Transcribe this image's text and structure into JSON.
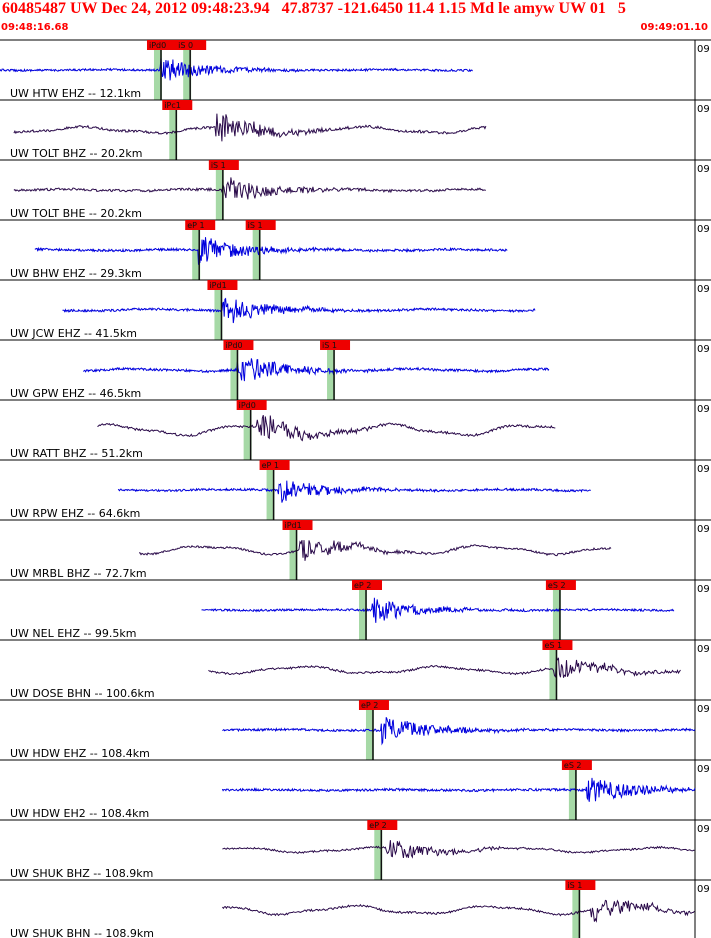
{
  "header": {
    "title": "60485487 UW Dec 24, 2012 09:48:23.94   47.8737 -121.6450 11.4 1.15 Md le amyw UW 01   5",
    "time_start": "09:48:16.68",
    "time_end": "09:49:01.10"
  },
  "colors": {
    "header_red": "#ff0000",
    "trace_blue": "#0000dd",
    "trace_purple": "#2a0a4a",
    "pick_flag": "#ee0000",
    "pick_band": "#a6d9a6",
    "border": "#000000"
  },
  "chart_data": {
    "type": "seismogram",
    "title": "60485487 UW Dec 24, 2012 09:48:23.94   47.8737 -121.6450 11.4 1.15 Md le amyw UW 01   5",
    "x_start": "09:48:16.68",
    "x_end": "09:49:01.10",
    "right_tick_label": "09",
    "traces": [
      {
        "label": "UW HTW EHZ -- 12.1km",
        "station": "HTW",
        "channel": "EHZ",
        "distance_km": 12.1,
        "color": "blue",
        "trace_start": 0.0,
        "trace_end": 0.68,
        "amplitude": 0.45,
        "onset": 0.23,
        "noise": 0.03,
        "wave": "noise",
        "picks": [
          {
            "label": "iPd0",
            "x": 0.223
          },
          {
            "label": "iS 0",
            "x": 0.265
          }
        ]
      },
      {
        "label": "UW TOLT BHZ -- 20.2km",
        "station": "TOLT",
        "channel": "BHZ",
        "distance_km": 20.2,
        "color": "purple",
        "trace_start": 0.02,
        "trace_end": 0.7,
        "amplitude": 0.55,
        "onset": 0.31,
        "noise": 0.18,
        "wave": "broadband",
        "picks": [
          {
            "label": "iPc1",
            "x": 0.245
          }
        ]
      },
      {
        "label": "UW TOLT BHE -- 20.2km",
        "station": "TOLT",
        "channel": "BHE",
        "distance_km": 20.2,
        "color": "purple",
        "trace_start": 0.02,
        "trace_end": 0.7,
        "amplitude": 0.55,
        "onset": 0.318,
        "noise": 0.05,
        "wave": "broadband",
        "picks": [
          {
            "label": "iS 1",
            "x": 0.312
          }
        ]
      },
      {
        "label": "UW BHW EHZ -- 29.3km",
        "station": "BHW",
        "channel": "EHZ",
        "distance_km": 29.3,
        "color": "blue",
        "trace_start": 0.05,
        "trace_end": 0.73,
        "amplitude": 0.5,
        "onset": 0.285,
        "noise": 0.04,
        "wave": "noise",
        "picks": [
          {
            "label": "eP 1",
            "x": 0.278
          },
          {
            "label": "iS 1",
            "x": 0.365
          }
        ]
      },
      {
        "label": "UW JCW EHZ -- 41.5km",
        "station": "JCW",
        "channel": "EHZ",
        "distance_km": 41.5,
        "color": "blue",
        "trace_start": 0.09,
        "trace_end": 0.77,
        "amplitude": 0.5,
        "onset": 0.32,
        "noise": 0.06,
        "wave": "noise",
        "picks": [
          {
            "label": "iPd1",
            "x": 0.31
          }
        ]
      },
      {
        "label": "UW GPW EHZ -- 46.5km",
        "station": "GPW",
        "channel": "EHZ",
        "distance_km": 46.5,
        "color": "blue",
        "trace_start": 0.12,
        "trace_end": 0.79,
        "amplitude": 0.5,
        "onset": 0.34,
        "noise": 0.08,
        "wave": "noise",
        "picks": [
          {
            "label": "iPd0",
            "x": 0.333
          },
          {
            "label": "iS 1",
            "x": 0.472
          }
        ]
      },
      {
        "label": "UW RATT BHZ -- 51.2km",
        "station": "RATT",
        "channel": "BHZ",
        "distance_km": 51.2,
        "color": "purple",
        "trace_start": 0.14,
        "trace_end": 0.8,
        "amplitude": 0.5,
        "onset": 0.37,
        "noise": 0.35,
        "wave": "broadband",
        "picks": [
          {
            "label": "iPd0",
            "x": 0.352
          }
        ]
      },
      {
        "label": "UW RPW EHZ -- 64.6km",
        "station": "RPW",
        "channel": "EHZ",
        "distance_km": 64.6,
        "color": "blue",
        "trace_start": 0.17,
        "trace_end": 0.85,
        "amplitude": 0.45,
        "onset": 0.4,
        "noise": 0.05,
        "wave": "noise",
        "picks": [
          {
            "label": "eP 1",
            "x": 0.385
          }
        ]
      },
      {
        "label": "UW MRBL BHZ -- 72.7km",
        "station": "MRBL",
        "channel": "BHZ",
        "distance_km": 72.7,
        "color": "purple",
        "trace_start": 0.2,
        "trace_end": 0.88,
        "amplitude": 0.45,
        "onset": 0.43,
        "noise": 0.3,
        "wave": "broadband",
        "picks": [
          {
            "label": "iPd1",
            "x": 0.418
          }
        ]
      },
      {
        "label": "UW NEL EHZ -- 99.5km",
        "station": "NEL",
        "channel": "EHZ",
        "distance_km": 99.5,
        "color": "blue",
        "trace_start": 0.29,
        "trace_end": 0.97,
        "amplitude": 0.45,
        "onset": 0.535,
        "noise": 0.03,
        "wave": "noise",
        "picks": [
          {
            "label": "eP 2",
            "x": 0.518
          },
          {
            "label": "eS 2",
            "x": 0.797
          }
        ]
      },
      {
        "label": "UW DOSE BHN -- 100.6km",
        "station": "DOSE",
        "channel": "BHN",
        "distance_km": 100.6,
        "color": "purple",
        "trace_start": 0.3,
        "trace_end": 0.98,
        "amplitude": 0.45,
        "onset": 0.795,
        "noise": 0.25,
        "wave": "broadband",
        "picks": [
          {
            "label": "eS 1",
            "x": 0.792
          }
        ]
      },
      {
        "label": "UW HDW EHZ -- 108.4km",
        "station": "HDW",
        "channel": "EHZ",
        "distance_km": 108.4,
        "color": "blue",
        "trace_start": 0.32,
        "trace_end": 1.0,
        "amplitude": 0.5,
        "onset": 0.548,
        "noise": 0.03,
        "wave": "noise",
        "picks": [
          {
            "label": "eP 2",
            "x": 0.528
          }
        ]
      },
      {
        "label": "UW HDW EH2 -- 108.4km",
        "station": "HDW",
        "channel": "EH2",
        "distance_km": 108.4,
        "color": "blue",
        "trace_start": 0.32,
        "trace_end": 1.0,
        "amplitude": 0.5,
        "onset": 0.843,
        "noise": 0.03,
        "wave": "noise",
        "picks": [
          {
            "label": "eS 2",
            "x": 0.82
          }
        ]
      },
      {
        "label": "UW SHUK BHZ -- 108.9km",
        "station": "SHUK",
        "channel": "BHZ",
        "distance_km": 108.9,
        "color": "purple",
        "trace_start": 0.32,
        "trace_end": 1.0,
        "amplitude": 0.4,
        "onset": 0.555,
        "noise": 0.2,
        "wave": "broadband",
        "picks": [
          {
            "label": "eP 2",
            "x": 0.54
          }
        ]
      },
      {
        "label": "UW SHUK BHN -- 108.9km",
        "station": "SHUK",
        "channel": "BHN",
        "distance_km": 108.9,
        "color": "purple",
        "trace_start": 0.32,
        "trace_end": 1.0,
        "amplitude": 0.45,
        "onset": 0.85,
        "noise": 0.3,
        "wave": "broadband",
        "picks": [
          {
            "label": "iS 1",
            "x": 0.825
          }
        ]
      }
    ]
  }
}
